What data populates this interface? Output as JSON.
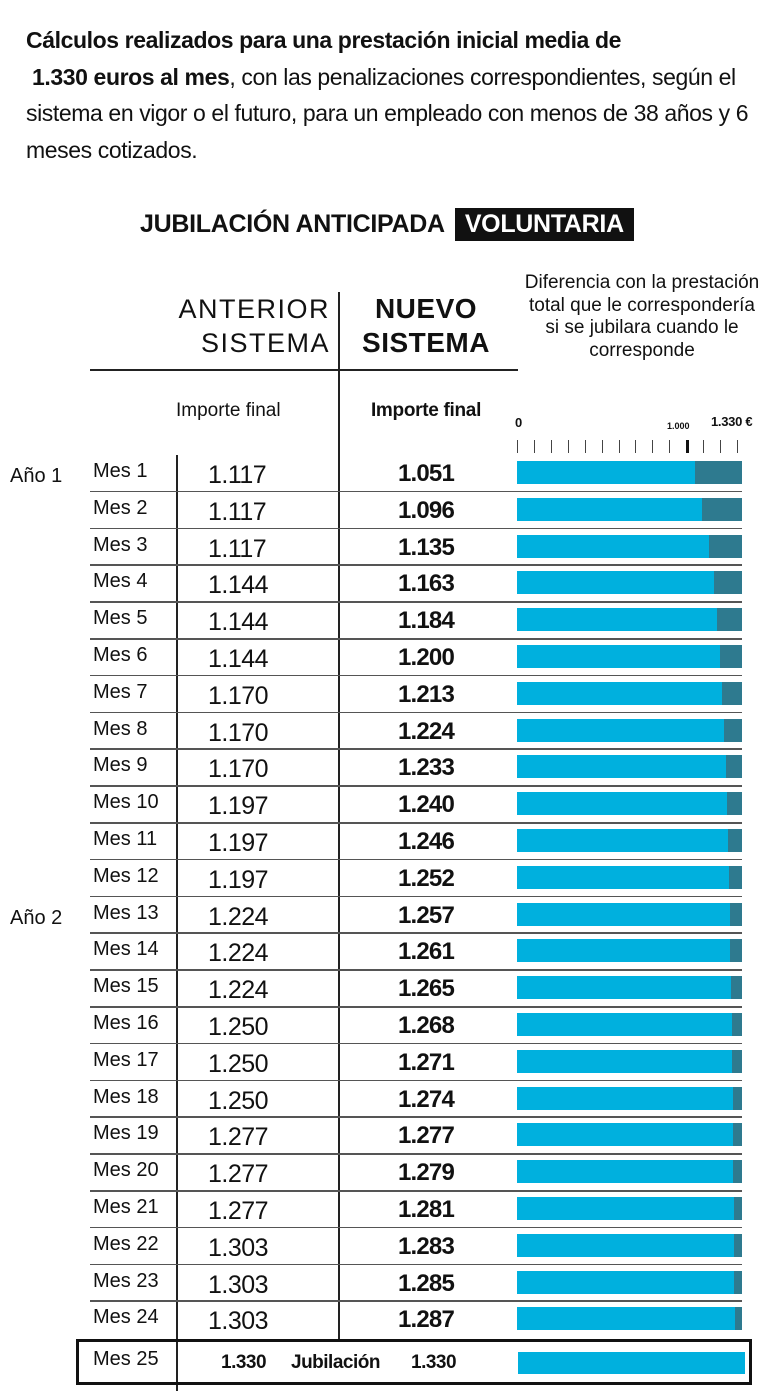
{
  "intro": {
    "line1": "Cálculos realizados para una prestación inicial media de",
    "line2_bold": "1.330 euros al mes",
    "line2_rest": ", con las penalizaciones correspondientes, según el sistema en vigor o el futuro, para un empleado con menos de 38 años y 6 meses cotizados."
  },
  "section_title": {
    "prefix": "JUBILACIÓN ANTICIPADA",
    "highlight": "VOLUNTARIA"
  },
  "headers": {
    "old_line1": "ANTERIOR",
    "old_line2": "SISTEMA",
    "new_line1": "NUEVO",
    "new_line2": "SISTEMA",
    "diff": "Diferencia con la prestación total que le correspondería si se jubilara cuando le corresponde",
    "old_sub": "Importe final",
    "new_sub": "Importe final"
  },
  "axis": {
    "min_label": "0",
    "mid_label": "1.000",
    "max_label": "1.330 €",
    "max": 1330,
    "tick_step": 100
  },
  "colors": {
    "received": "#00b0de",
    "difference": "#2e7a8f"
  },
  "final_row": {
    "mes": "Mes 25",
    "old": "1.330",
    "label": "Jubilación",
    "new": "1.330"
  },
  "chart_data": {
    "type": "bar",
    "title": "JUBILACIÓN ANTICIPADA VOLUNTARIA",
    "subtitle": "Diferencia con la prestación total que le correspondería si se jubilara cuando le corresponde",
    "orientation": "horizontal",
    "stacked": true,
    "xlim": [
      0,
      1330
    ],
    "x_ticks": [
      "0",
      "1.000",
      "1.330 €"
    ],
    "categories": [
      "Mes 1",
      "Mes 2",
      "Mes 3",
      "Mes 4",
      "Mes 5",
      "Mes 6",
      "Mes 7",
      "Mes 8",
      "Mes 9",
      "Mes 10",
      "Mes 11",
      "Mes 12",
      "Mes 13",
      "Mes 14",
      "Mes 15",
      "Mes 16",
      "Mes 17",
      "Mes 18",
      "Mes 19",
      "Mes 20",
      "Mes 21",
      "Mes 22",
      "Mes 23",
      "Mes 24",
      "Mes 25"
    ],
    "groups": [
      {
        "label": "Año 1",
        "start": "Mes 1"
      },
      {
        "label": "Año 2",
        "start": "Mes 13"
      }
    ],
    "series": [
      {
        "name": "Anterior sistema - Importe final",
        "values": [
          1117,
          1117,
          1117,
          1144,
          1144,
          1144,
          1170,
          1170,
          1170,
          1197,
          1197,
          1197,
          1224,
          1224,
          1224,
          1250,
          1250,
          1250,
          1277,
          1277,
          1277,
          1303,
          1303,
          1303,
          1330
        ]
      },
      {
        "name": "Nuevo sistema - Importe final",
        "values": [
          1051,
          1096,
          1135,
          1163,
          1184,
          1200,
          1213,
          1224,
          1233,
          1240,
          1246,
          1252,
          1257,
          1261,
          1265,
          1268,
          1271,
          1274,
          1277,
          1279,
          1281,
          1283,
          1285,
          1287,
          1330
        ]
      },
      {
        "name": "Diferencia con 1.330",
        "values": [
          279,
          234,
          195,
          167,
          146,
          130,
          117,
          106,
          97,
          90,
          84,
          78,
          73,
          69,
          65,
          62,
          59,
          56,
          53,
          51,
          49,
          47,
          45,
          43,
          0
        ]
      }
    ]
  },
  "rows": [
    {
      "year": "Año 1",
      "mes": "Mes 1",
      "old": "1.117",
      "new": "1.051",
      "value": 1051
    },
    {
      "year": "",
      "mes": "Mes 2",
      "old": "1.117",
      "new": "1.096",
      "value": 1096
    },
    {
      "year": "",
      "mes": "Mes 3",
      "old": "1.117",
      "new": "1.135",
      "value": 1135
    },
    {
      "year": "",
      "mes": "Mes 4",
      "old": "1.144",
      "new": "1.163",
      "value": 1163
    },
    {
      "year": "",
      "mes": "Mes 5",
      "old": "1.144",
      "new": "1.184",
      "value": 1184
    },
    {
      "year": "",
      "mes": "Mes 6",
      "old": "1.144",
      "new": "1.200",
      "value": 1200
    },
    {
      "year": "",
      "mes": "Mes 7",
      "old": "1.170",
      "new": "1.213",
      "value": 1213
    },
    {
      "year": "",
      "mes": "Mes 8",
      "old": "1.170",
      "new": "1.224",
      "value": 1224
    },
    {
      "year": "",
      "mes": "Mes 9",
      "old": "1.170",
      "new": "1.233",
      "value": 1233
    },
    {
      "year": "",
      "mes": "Mes 10",
      "old": "1.197",
      "new": "1.240",
      "value": 1240
    },
    {
      "year": "",
      "mes": "Mes 11",
      "old": "1.197",
      "new": "1.246",
      "value": 1246
    },
    {
      "year": "",
      "mes": "Mes 12",
      "old": "1.197",
      "new": "1.252",
      "value": 1252
    },
    {
      "year": "Año 2",
      "mes": "Mes 13",
      "old": "1.224",
      "new": "1.257",
      "value": 1257
    },
    {
      "year": "",
      "mes": "Mes 14",
      "old": "1.224",
      "new": "1.261",
      "value": 1261
    },
    {
      "year": "",
      "mes": "Mes 15",
      "old": "1.224",
      "new": "1.265",
      "value": 1265
    },
    {
      "year": "",
      "mes": "Mes 16",
      "old": "1.250",
      "new": "1.268",
      "value": 1268
    },
    {
      "year": "",
      "mes": "Mes 17",
      "old": "1.250",
      "new": "1.271",
      "value": 1271
    },
    {
      "year": "",
      "mes": "Mes 18",
      "old": "1.250",
      "new": "1.274",
      "value": 1274
    },
    {
      "year": "",
      "mes": "Mes 19",
      "old": "1.277",
      "new": "1.277",
      "value": 1277
    },
    {
      "year": "",
      "mes": "Mes 20",
      "old": "1.277",
      "new": "1.279",
      "value": 1279
    },
    {
      "year": "",
      "mes": "Mes 21",
      "old": "1.277",
      "new": "1.281",
      "value": 1281
    },
    {
      "year": "",
      "mes": "Mes 22",
      "old": "1.303",
      "new": "1.283",
      "value": 1283
    },
    {
      "year": "",
      "mes": "Mes 23",
      "old": "1.303",
      "new": "1.285",
      "value": 1285
    },
    {
      "year": "",
      "mes": "Mes 24",
      "old": "1.303",
      "new": "1.287",
      "value": 1287
    }
  ]
}
